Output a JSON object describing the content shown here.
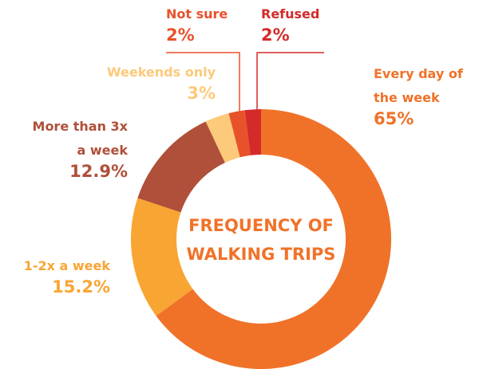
{
  "chart_data": {
    "type": "donut",
    "title_lines": [
      "FREQUENCY OF",
      "WALKING TRIPS"
    ],
    "categories": [
      "Every day of the week",
      "1-2x a week",
      "More than 3x a week",
      "Weekends only",
      "Not sure",
      "Refused"
    ],
    "values": [
      65,
      15.2,
      12.9,
      3,
      2,
      2
    ],
    "value_labels": [
      "65%",
      "15.2%",
      "12.9%",
      "3%",
      "2%",
      "2%"
    ],
    "colors": [
      "#f07229",
      "#f9a533",
      "#b0503a",
      "#fdc97a",
      "#e8522a",
      "#d42a2a"
    ]
  }
}
